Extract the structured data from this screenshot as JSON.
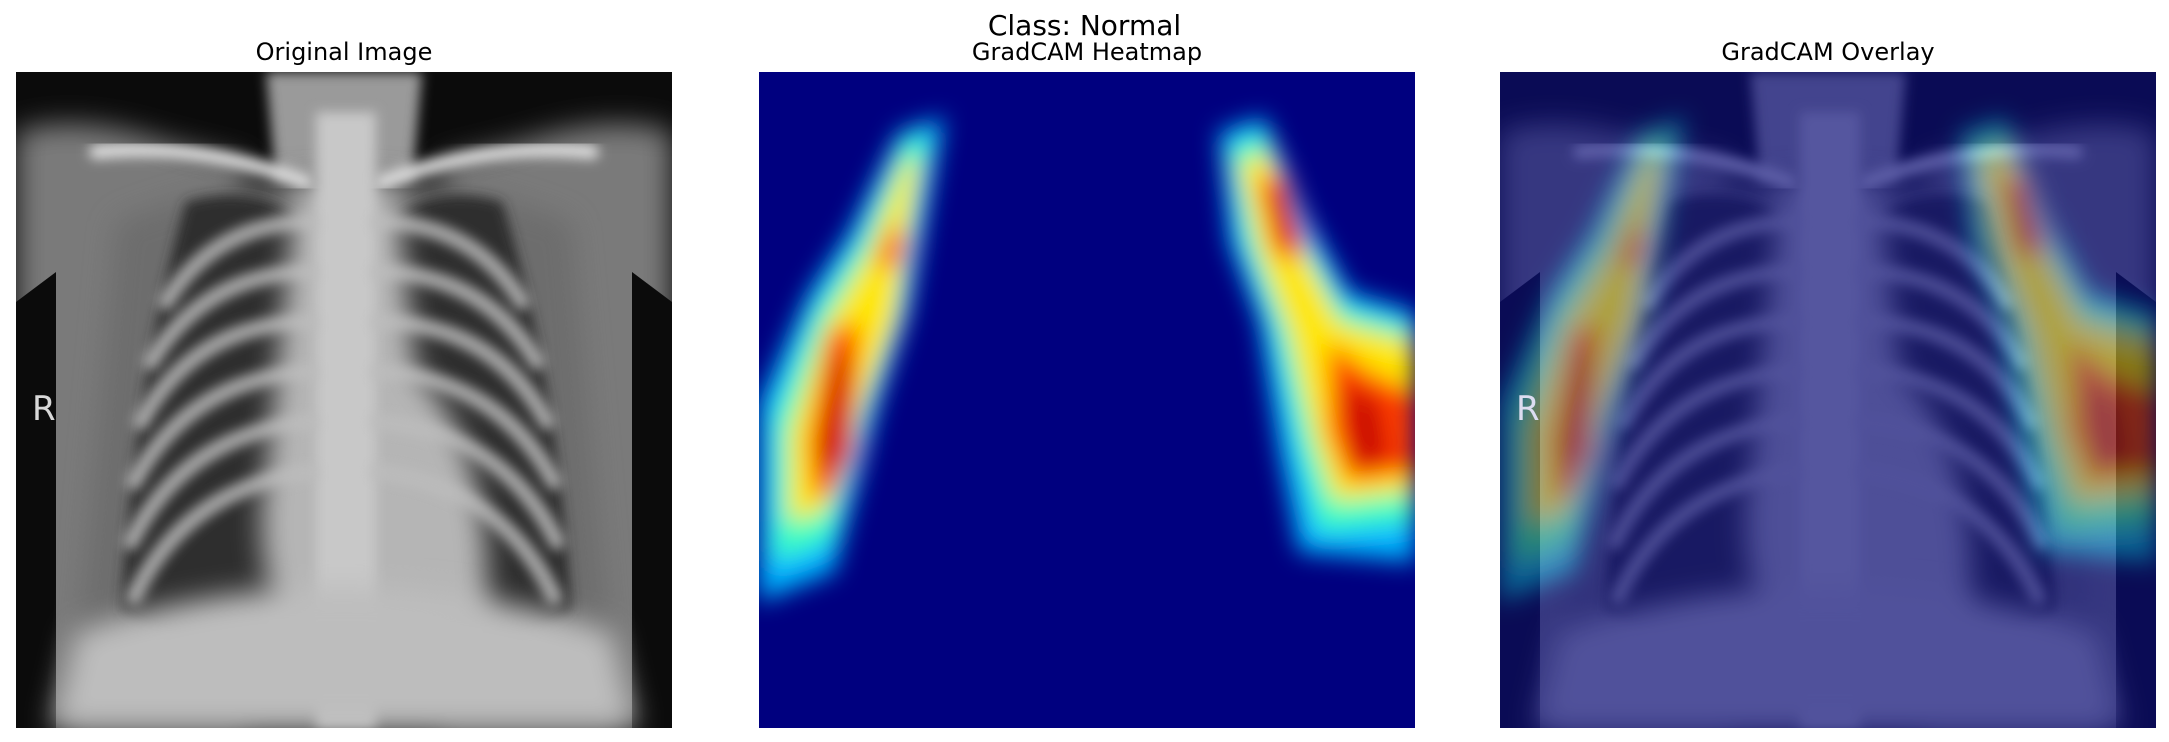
{
  "figure": {
    "title": "Class: Normal",
    "panels": [
      {
        "title": "Original Image"
      },
      {
        "title": "GradCAM Heatmap"
      },
      {
        "title": "GradCAM Overlay"
      }
    ],
    "xray_marker": "R"
  },
  "colors": {
    "background": "#ffffff",
    "heatmap_base": "#00007f",
    "heatmap_hot": "#c80000",
    "overlay_tint": "#1a1f8a"
  }
}
